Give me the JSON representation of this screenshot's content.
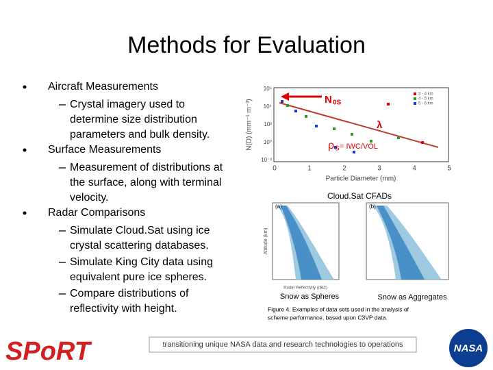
{
  "header": {
    "title": "Methods for Evaluation"
  },
  "bullets": [
    {
      "text": "Aircraft Measurements",
      "subitems": [
        {
          "lines": [
            "Crystal imagery used to",
            "determine size distribution",
            "parameters and bulk density."
          ]
        }
      ]
    },
    {
      "text": "Surface Measurements",
      "subitems": [
        {
          "lines": [
            "Measurement of distributions at",
            "the surface, along with terminal",
            "velocity."
          ]
        }
      ]
    },
    {
      "text": "Radar Comparisons",
      "subitems": [
        {
          "lines": [
            "Simulate Cloud.Sat using ice",
            "crystal scattering databases."
          ]
        },
        {
          "lines": [
            "Simulate King City data using",
            "equivalent pure ice spheres."
          ]
        },
        {
          "lines": [
            "Compare distributions of",
            "reflectivity with height."
          ]
        }
      ]
    }
  ],
  "figure": {
    "plot": {
      "y_label": "N(D) (mm⁻¹ m⁻³)",
      "x_label": "Particle Diameter (mm)",
      "y_tick_labels": [
        "10⁶",
        "10⁴",
        "10²",
        "10⁰",
        "10⁻²"
      ],
      "x_tick_labels": [
        "0",
        "1",
        "2",
        "3",
        "4",
        "5"
      ],
      "legend": [
        "3 - 4 km",
        "4 - 5 km",
        "5 - 6 km"
      ],
      "annotations": {
        "n0": "N",
        "n0_sub": "0S",
        "lambda": "λ",
        "rho": "ρ",
        "rho_sub": "S",
        "rho_rest": " = IWC/VOL"
      }
    },
    "cfad_title": "Cloud.Sat CFADs",
    "panel_labels": [
      "(a)",
      "(b)"
    ],
    "cfad_axis": {
      "y_label": "Altitude (km)",
      "x_label": "Radar Reflectivity (dBZ)"
    },
    "left_label": "Snow as Spheres",
    "right_label": "Snow as Aggregates",
    "caption": [
      "Figure 4.  Examples of data sets used in the analysis of",
      "scheme performance, based upon C3VP data."
    ]
  },
  "footer": {
    "text": "transitioning unique NASA data and research technologies to operations",
    "logo_left": "SPoRT",
    "logo_right": "NASA"
  }
}
